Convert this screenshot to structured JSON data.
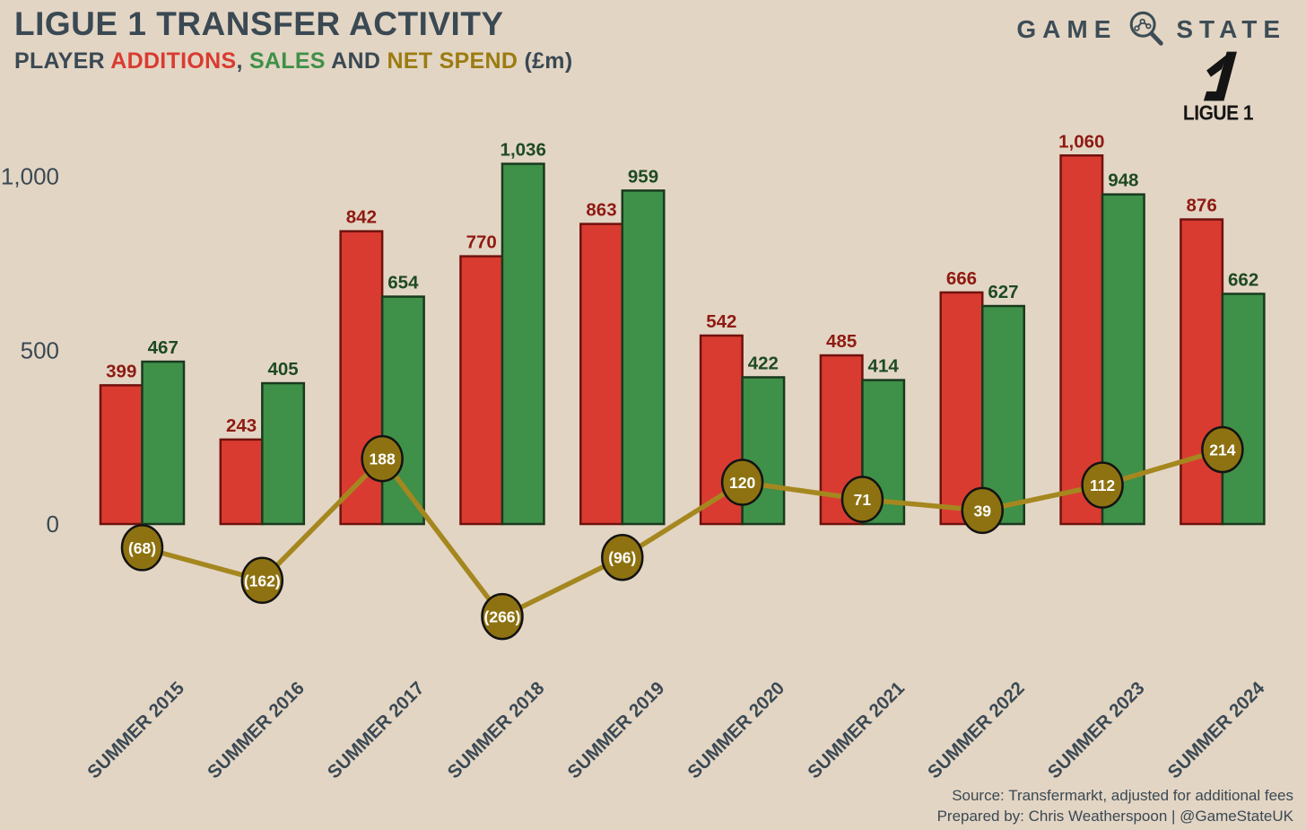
{
  "header": {
    "title": "LIGUE 1 TRANSFER ACTIVITY",
    "subtitle_parts": {
      "player": "PLAYER ",
      "additions": "ADDITIONS",
      "comma": ", ",
      "sales": "SALES",
      "and": " AND ",
      "net_spend": "NET SPEND",
      "unit": " (£m)"
    },
    "brand": {
      "left": "GAME",
      "right": "STATE"
    },
    "league_logo_text": "LIGUE 1"
  },
  "footer": {
    "source_line": "Source: Transfermarkt, adjusted for additional fees",
    "prepared_line": "Prepared by: Chris Weatherspoon | @GameStateUK"
  },
  "colors": {
    "background": "#e3d5c4",
    "text_dark": "#3a4953",
    "additions_fill": "#d93b31",
    "additions_stroke": "#70120d",
    "additions_label": "#8e1a12",
    "sales_fill": "#3f9048",
    "sales_stroke": "#193a1e",
    "sales_label": "#1d4a22",
    "net_line": "#a5871f",
    "net_marker_fill": "#8e7211",
    "net_marker_stroke": "#131313",
    "net_marker_text": "#ffffff",
    "net_subtitle": "#9c7c10",
    "logo_black": "#141414"
  },
  "chart_data": {
    "type": "bar",
    "title": "LIGUE 1 TRANSFER ACTIVITY",
    "subtitle": "PLAYER ADDITIONS, SALES AND NET SPEND (£m)",
    "categories": [
      "SUMMER 2015",
      "SUMMER 2016",
      "SUMMER 2017",
      "SUMMER 2018",
      "SUMMER 2019",
      "SUMMER 2020",
      "SUMMER 2021",
      "SUMMER 2022",
      "SUMMER 2023",
      "SUMMER 2024"
    ],
    "series": [
      {
        "name": "Additions",
        "type": "bar",
        "values": [
          399,
          243,
          842,
          770,
          863,
          542,
          485,
          666,
          1060,
          876
        ],
        "labels": [
          "399",
          "243",
          "842",
          "770",
          "863",
          "542",
          "485",
          "666",
          "1,060",
          "876"
        ]
      },
      {
        "name": "Sales",
        "type": "bar",
        "values": [
          467,
          405,
          654,
          1036,
          959,
          422,
          414,
          627,
          948,
          662
        ],
        "labels": [
          "467",
          "405",
          "654",
          "1,036",
          "959",
          "422",
          "414",
          "627",
          "948",
          "662"
        ]
      },
      {
        "name": "Net Spend",
        "type": "line",
        "values": [
          -68,
          -162,
          188,
          -266,
          -96,
          120,
          71,
          39,
          112,
          214
        ],
        "labels": [
          "(68)",
          "(162)",
          "188",
          "(266)",
          "(96)",
          "120",
          "71",
          "39",
          "112",
          "214"
        ]
      }
    ],
    "y_axis": {
      "ticks": [
        0,
        500,
        1000
      ],
      "tick_labels": [
        "0",
        "500",
        "1,000"
      ],
      "range_shown": [
        -310,
        1100
      ]
    },
    "grid": false,
    "legend_position": "encoded-in-subtitle"
  }
}
